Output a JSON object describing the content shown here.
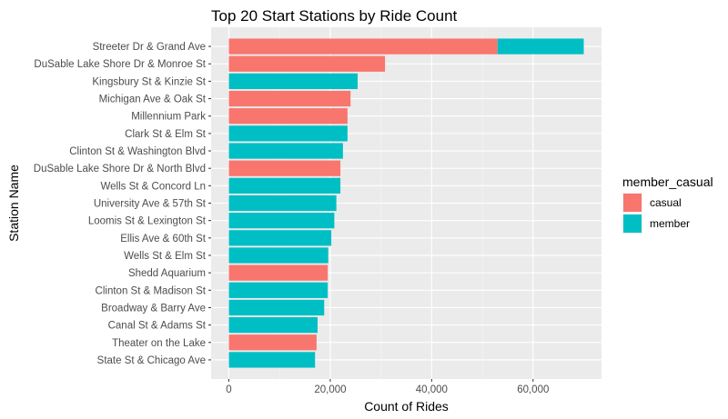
{
  "chart_data": {
    "type": "bar",
    "orientation": "horizontal",
    "stacked": true,
    "title": "Top 20 Start Stations by Ride Count",
    "xlabel": "Count of Rides",
    "ylabel": "Station Name",
    "xlim": [
      -3500,
      73500
    ],
    "x_ticks": [
      0,
      20000,
      40000,
      60000
    ],
    "x_tick_labels": [
      "0",
      "20,000",
      "40,000",
      "60,000"
    ],
    "grid": true,
    "legend": {
      "title": "member_casual",
      "placement": "right",
      "entries": [
        "casual",
        "member"
      ]
    },
    "colors": {
      "casual": "#F8766D",
      "member": "#00BFC4"
    },
    "categories": [
      "Streeter Dr & Grand Ave",
      "DuSable Lake Shore Dr & Monroe St",
      "Kingsbury St & Kinzie St",
      "Michigan Ave & Oak St",
      "Millennium Park",
      "Clark St & Elm St",
      "Clinton St & Washington Blvd",
      "DuSable Lake Shore Dr & North Blvd",
      "Wells St & Concord Ln",
      "University Ave & 57th St",
      "Loomis St & Lexington St",
      "Ellis Ave & 60th St",
      "Wells St & Elm St",
      "Shedd Aquarium",
      "Clinton St & Madison St",
      "Broadway & Barry Ave",
      "Canal St & Adams St",
      "Theater on the Lake",
      "State St & Chicago Ave"
    ],
    "series": [
      {
        "name": "casual",
        "values": [
          53000,
          30800,
          0,
          24000,
          23400,
          0,
          0,
          22000,
          0,
          0,
          0,
          0,
          0,
          19500,
          0,
          0,
          0,
          17300,
          0
        ]
      },
      {
        "name": "member",
        "values": [
          17000,
          0,
          25400,
          0,
          0,
          23400,
          22500,
          0,
          22000,
          21200,
          20800,
          20200,
          19600,
          0,
          19500,
          18800,
          17500,
          0,
          17000
        ]
      }
    ]
  }
}
